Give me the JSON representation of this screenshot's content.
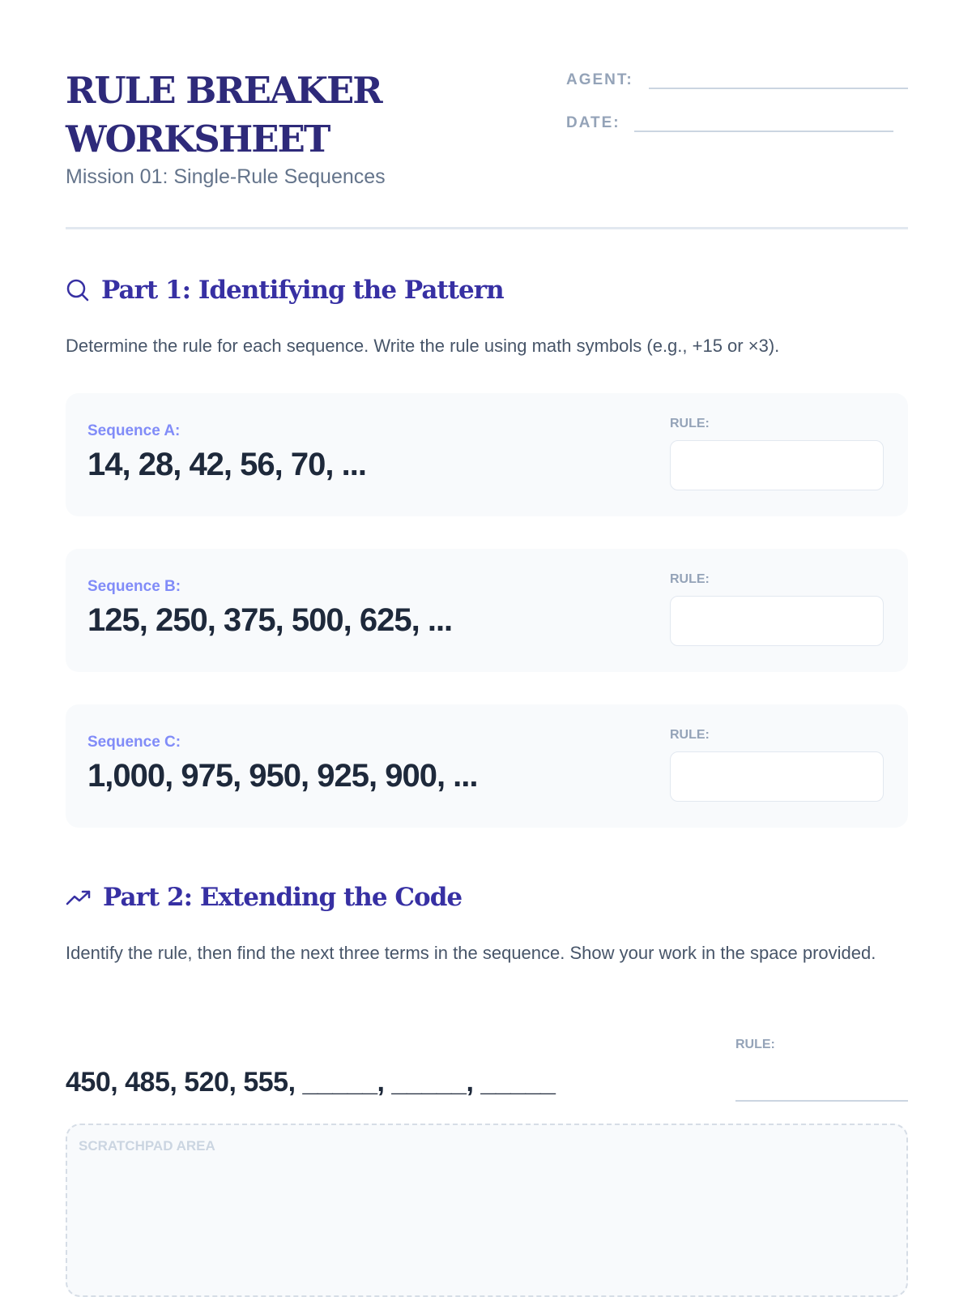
{
  "header": {
    "title_line1": "RULE BREAKER",
    "title_line2": "WORKSHEET",
    "subtitle": "Mission 01: Single-Rule Sequences",
    "agent_label": "AGENT:",
    "date_label": "DATE:"
  },
  "part1": {
    "icon": "search-icon",
    "heading": "Part 1: Identifying the Pattern",
    "instructions": "Determine the rule for each sequence. Write the rule using math symbols (e.g., +15 or ×3).",
    "sequences": [
      {
        "label": "Sequence A:",
        "terms": "14, 28, 42, 56, 70, ...",
        "rule_label": "RULE:"
      },
      {
        "label": "Sequence B:",
        "terms": "125, 250, 375, 500, 625, ...",
        "rule_label": "RULE:"
      },
      {
        "label": "Sequence C:",
        "terms": "1,000, 975, 950, 925, 900, ...",
        "rule_label": "RULE:"
      }
    ]
  },
  "part2": {
    "icon": "trending-up-icon",
    "heading": "Part 2: Extending the Code",
    "instructions": "Identify the rule, then find the next three terms in the sequence. Show your work in the space provided.",
    "sequence": "450, 485, 520, 555, _____, _____, _____",
    "rule_label": "RULE:",
    "scratchpad_label": "SCRATCHPAD AREA"
  }
}
